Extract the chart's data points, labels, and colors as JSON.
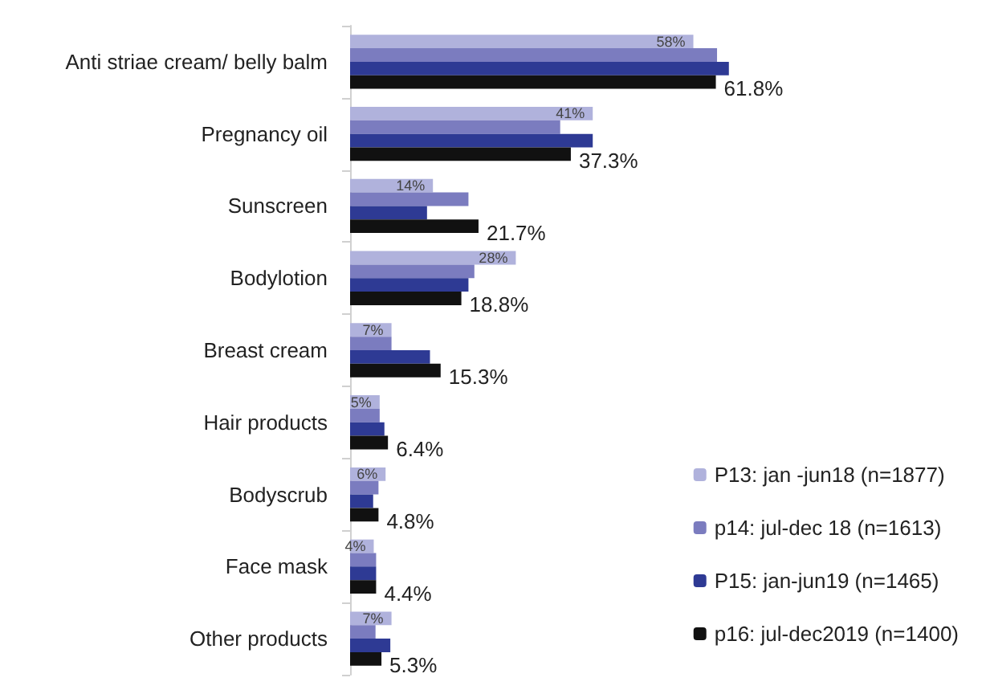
{
  "chart_data": {
    "type": "bar",
    "orientation": "horizontal",
    "categories": [
      "Anti striae cream/ belly balm",
      "Pregnancy oil",
      "Sunscreen",
      "Bodylotion",
      "Breast cream",
      "Hair products",
      "Bodyscrub",
      "Face mask",
      "Other products"
    ],
    "series": [
      {
        "name": "P13: jan -jun18 (n=1877)",
        "color": "#b0b2dc",
        "values": [
          58,
          41,
          14,
          28,
          7,
          5,
          6,
          4,
          7
        ],
        "value_labels": [
          "58%",
          "41%",
          "14%",
          "28%",
          "7%",
          "5%",
          "6%",
          "4%",
          "7%"
        ]
      },
      {
        "name": "p14: jul-dec 18 (n=1613)",
        "color": "#7b7cbf",
        "values": [
          62,
          35.5,
          20,
          21,
          7,
          5,
          4.8,
          4.4,
          4.3
        ]
      },
      {
        "name": "P15: jan-jun19 (n=1465)",
        "color": "#2e3a94",
        "values": [
          64,
          41,
          13,
          20,
          13.5,
          5.8,
          3.9,
          4.4,
          6.8
        ]
      },
      {
        "name": "p16: jul-dec2019 (n=1400)",
        "color": "#111111",
        "values": [
          61.8,
          37.3,
          21.7,
          18.8,
          15.3,
          6.4,
          4.8,
          4.4,
          5.3
        ],
        "value_labels": [
          "61.8%",
          "37.3%",
          "21.7%",
          "18.8%",
          "15.3%",
          "6.4%",
          "4.8%",
          "4.4%",
          "5.3%"
        ]
      }
    ],
    "legend": "bottom right"
  }
}
